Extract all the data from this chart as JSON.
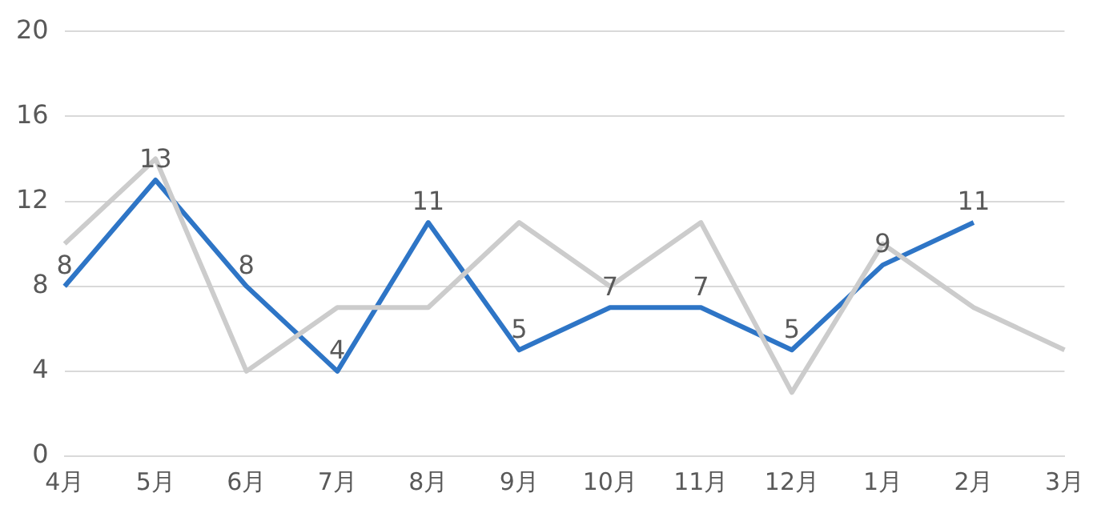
{
  "chart_data": {
    "type": "line",
    "categories": [
      "4月",
      "5月",
      "6月",
      "7月",
      "8月",
      "9月",
      "10月",
      "11月",
      "12月",
      "1月",
      "2月",
      "3月"
    ],
    "series": [
      {
        "color": "#cccccc",
        "values": [
          10,
          14,
          4,
          7,
          7,
          11,
          8,
          11,
          3,
          10,
          7,
          5
        ]
      },
      {
        "color": "#2e75c6",
        "values": [
          8,
          13,
          8,
          4,
          11,
          5,
          7,
          7,
          5,
          9,
          11,
          null
        ],
        "value_labels": [
          "8",
          "13",
          "8",
          "4",
          "11",
          "5",
          "7",
          "7",
          "5",
          "9",
          "11",
          null
        ]
      }
    ],
    "ylim": [
      0,
      20
    ],
    "yticks": [
      0,
      4,
      8,
      12,
      16,
      20
    ],
    "grid": "y",
    "legend": false,
    "marker": "none",
    "line_style": "solid"
  }
}
